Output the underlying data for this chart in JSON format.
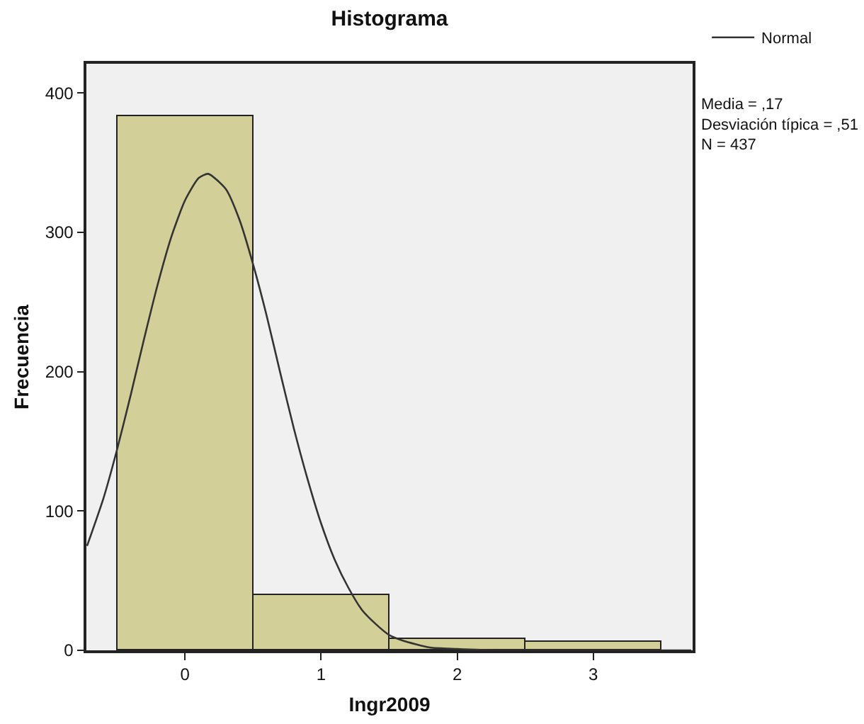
{
  "chart_data": {
    "type": "histogram",
    "title": "Histograma",
    "xlabel": "Ingr2009",
    "ylabel": "Frecuencia",
    "bins": [
      -0.5,
      0.5,
      1.5,
      2.5,
      3.5
    ],
    "values": [
      383,
      40,
      8,
      6
    ],
    "color": "#d3cf98",
    "series": [
      {
        "type": "line",
        "name": "Normal",
        "color": "#333333",
        "x": [
          -0.72,
          -0.6,
          -0.5,
          -0.4,
          -0.3,
          -0.2,
          -0.1,
          0,
          0.1,
          0.17,
          0.3,
          0.4,
          0.5,
          0.6,
          0.7,
          0.8,
          0.9,
          1.0,
          1.1,
          1.2,
          1.3,
          1.4,
          1.5,
          1.6,
          1.8,
          2.0,
          2.3,
          2.6,
          3.0,
          3.5,
          3.72
        ],
        "values": [
          75,
          109,
          144,
          183,
          224,
          263,
          297,
          323,
          339,
          342,
          331,
          309,
          277,
          240,
          199,
          159,
          123,
          91,
          65,
          45,
          29,
          19,
          11,
          7,
          2,
          1,
          0,
          0,
          0,
          0,
          0
        ]
      }
    ],
    "xlim": [
      -0.725,
      3.73
    ],
    "ylim": [
      0,
      421
    ],
    "xticks": [
      0,
      1,
      2,
      3
    ],
    "yticks": [
      0,
      100,
      200,
      300,
      400
    ],
    "grid": false,
    "legend": "top right",
    "line_style": "solid",
    "marker": "none",
    "annotations": [
      "Media = ,17\nDesviación típica = ,51\nN = 437"
    ]
  }
}
